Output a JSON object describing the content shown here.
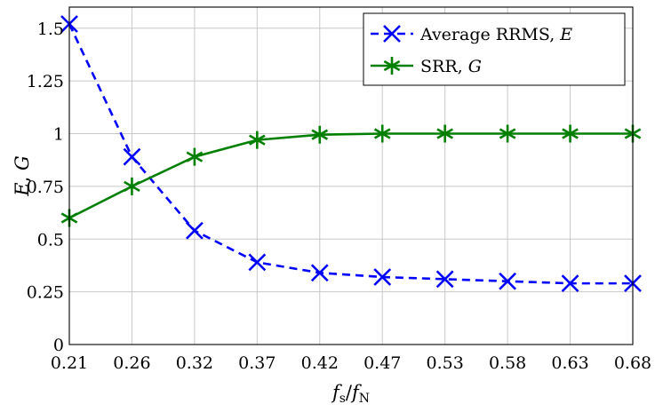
{
  "chart_data": {
    "type": "line",
    "xlabel": "f_s/f_N",
    "ylabel": "E, G",
    "x": [
      0.21,
      0.26,
      0.32,
      0.37,
      0.42,
      0.47,
      0.53,
      0.58,
      0.63,
      0.68
    ],
    "x_tick_labels": [
      "0.21",
      "0.26",
      "0.32",
      "0.37",
      "0.42",
      "0.47",
      "0.53",
      "0.58",
      "0.63",
      "0.68"
    ],
    "ylim": [
      0,
      1.6
    ],
    "y_ticks": [
      0,
      0.25,
      0.5,
      0.75,
      1,
      1.25,
      1.5
    ],
    "y_tick_labels": [
      "0",
      "0.25",
      "0.5",
      "0.75",
      "1",
      "1.25",
      "1.5"
    ],
    "grid": true,
    "legend_position": "top-right",
    "series": [
      {
        "name": "Average RRMS, E",
        "name_prefix": "Average RRMS, ",
        "name_var": "E",
        "color": "#0000ff",
        "line_style": "dashed",
        "marker": "x",
        "values": [
          1.52,
          0.89,
          0.54,
          0.39,
          0.34,
          0.32,
          0.31,
          0.3,
          0.29,
          0.29
        ]
      },
      {
        "name": "SRR, G",
        "name_prefix": "SRR, ",
        "name_var": "G",
        "color": "#007f00",
        "line_style": "solid",
        "marker": "asterisk",
        "values": [
          0.6,
          0.75,
          0.89,
          0.97,
          0.995,
          1.0,
          1.0,
          1.0,
          1.0,
          1.0
        ]
      }
    ]
  }
}
